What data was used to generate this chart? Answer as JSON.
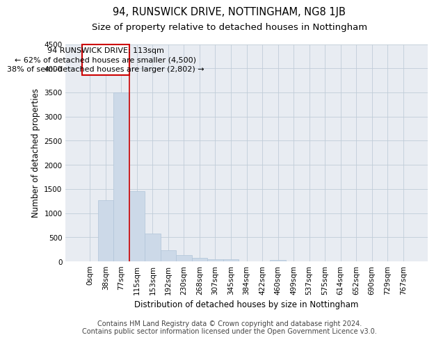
{
  "title": "94, RUNSWICK DRIVE, NOTTINGHAM, NG8 1JB",
  "subtitle": "Size of property relative to detached houses in Nottingham",
  "xlabel": "Distribution of detached houses by size in Nottingham",
  "ylabel": "Number of detached properties",
  "bar_color": "#ccd9e8",
  "bar_edge_color": "#b0c4d8",
  "categories": [
    "0sqm",
    "38sqm",
    "77sqm",
    "115sqm",
    "153sqm",
    "192sqm",
    "230sqm",
    "268sqm",
    "307sqm",
    "345sqm",
    "384sqm",
    "422sqm",
    "460sqm",
    "499sqm",
    "537sqm",
    "575sqm",
    "614sqm",
    "652sqm",
    "690sqm",
    "729sqm",
    "767sqm"
  ],
  "values": [
    5,
    1270,
    3500,
    1450,
    580,
    240,
    130,
    70,
    50,
    50,
    2,
    0,
    30,
    0,
    0,
    0,
    0,
    0,
    0,
    0,
    0
  ],
  "ylim": [
    0,
    4500
  ],
  "yticks": [
    0,
    500,
    1000,
    1500,
    2000,
    2500,
    3000,
    3500,
    4000,
    4500
  ],
  "marker_label": "94 RUNSWICK DRIVE: 113sqm",
  "annotation_line1": "← 62% of detached houses are smaller (4,500)",
  "annotation_line2": "38% of semi-detached houses are larger (2,802) →",
  "annotation_box_color": "#ffffff",
  "annotation_box_edge": "#cc0000",
  "vline_color": "#cc0000",
  "grid_color": "#c0ccd8",
  "bg_color": "#e8ecf2",
  "footer_line1": "Contains HM Land Registry data © Crown copyright and database right 2024.",
  "footer_line2": "Contains public sector information licensed under the Open Government Licence v3.0.",
  "title_fontsize": 10.5,
  "subtitle_fontsize": 9.5,
  "label_fontsize": 8.5,
  "tick_fontsize": 7.5,
  "footer_fontsize": 7,
  "annot_fontsize": 8,
  "vline_x": 2.5
}
